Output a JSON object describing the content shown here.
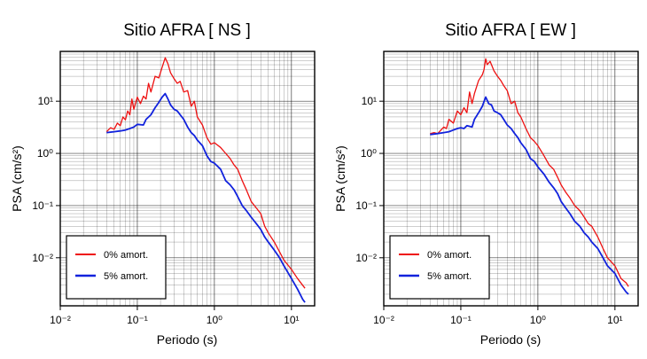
{
  "colors": {
    "undamped": "#ee1111",
    "damped": "#1122dd",
    "grid": "#000000",
    "frame": "#000000"
  },
  "chart_data": [
    {
      "type": "line",
      "title": "Sitio AFRA [ NS ]",
      "xlabel": "Periodo (s)",
      "ylabel": "PSA (cm/s²)",
      "x_scale": "log",
      "y_scale": "log",
      "xlim": [
        0.01,
        20
      ],
      "ylim": [
        0.0012,
        90
      ],
      "x_ticks": [
        "10⁻²",
        "10⁻¹",
        "10⁰",
        "10¹"
      ],
      "y_ticks": [
        "10⁻²",
        "10⁻¹",
        "10⁰",
        "10¹"
      ],
      "grid": true,
      "legend_position": "lower-left",
      "series": [
        {
          "name": "0% amort.",
          "points": [
            [
              0.04,
              2.6
            ],
            [
              0.045,
              3.1
            ],
            [
              0.05,
              2.9
            ],
            [
              0.055,
              3.8
            ],
            [
              0.06,
              3.4
            ],
            [
              0.065,
              5.0
            ],
            [
              0.07,
              4.4
            ],
            [
              0.075,
              6.5
            ],
            [
              0.08,
              5.5
            ],
            [
              0.085,
              11
            ],
            [
              0.09,
              7
            ],
            [
              0.1,
              12
            ],
            [
              0.11,
              9
            ],
            [
              0.12,
              12.5
            ],
            [
              0.13,
              11
            ],
            [
              0.14,
              22
            ],
            [
              0.15,
              15
            ],
            [
              0.17,
              30
            ],
            [
              0.19,
              28
            ],
            [
              0.21,
              45
            ],
            [
              0.23,
              68
            ],
            [
              0.25,
              52
            ],
            [
              0.27,
              35
            ],
            [
              0.3,
              27
            ],
            [
              0.33,
              22
            ],
            [
              0.36,
              24
            ],
            [
              0.4,
              15
            ],
            [
              0.45,
              16
            ],
            [
              0.5,
              8
            ],
            [
              0.55,
              10
            ],
            [
              0.6,
              5
            ],
            [
              0.7,
              3.5
            ],
            [
              0.8,
              2
            ],
            [
              0.9,
              1.5
            ],
            [
              1.0,
              1.6
            ],
            [
              1.2,
              1.3
            ],
            [
              1.4,
              1.0
            ],
            [
              1.6,
              0.8
            ],
            [
              1.8,
              0.6
            ],
            [
              2.0,
              0.5
            ],
            [
              2.3,
              0.3
            ],
            [
              2.6,
              0.2
            ],
            [
              3.0,
              0.12
            ],
            [
              3.5,
              0.09
            ],
            [
              4.0,
              0.07
            ],
            [
              4.5,
              0.04
            ],
            [
              5.0,
              0.03
            ],
            [
              6.0,
              0.02
            ],
            [
              7.0,
              0.013
            ],
            [
              8.0,
              0.009
            ],
            [
              10.0,
              0.006
            ],
            [
              12.0,
              0.004
            ],
            [
              15.0,
              0.0026
            ]
          ]
        },
        {
          "name": "5% amort.",
          "points": [
            [
              0.04,
              2.5
            ],
            [
              0.05,
              2.6
            ],
            [
              0.06,
              2.7
            ],
            [
              0.07,
              2.8
            ],
            [
              0.08,
              3.0
            ],
            [
              0.09,
              3.2
            ],
            [
              0.1,
              3.6
            ],
            [
              0.12,
              3.5
            ],
            [
              0.13,
              4.5
            ],
            [
              0.15,
              5.5
            ],
            [
              0.17,
              7.5
            ],
            [
              0.19,
              9.5
            ],
            [
              0.21,
              12
            ],
            [
              0.23,
              14
            ],
            [
              0.25,
              11
            ],
            [
              0.27,
              8.5
            ],
            [
              0.3,
              7
            ],
            [
              0.33,
              6.5
            ],
            [
              0.36,
              5.5
            ],
            [
              0.4,
              4.5
            ],
            [
              0.45,
              3.2
            ],
            [
              0.5,
              2.5
            ],
            [
              0.55,
              2.2
            ],
            [
              0.6,
              1.8
            ],
            [
              0.7,
              1.4
            ],
            [
              0.8,
              0.9
            ],
            [
              0.9,
              0.7
            ],
            [
              1.0,
              0.65
            ],
            [
              1.2,
              0.5
            ],
            [
              1.4,
              0.3
            ],
            [
              1.6,
              0.25
            ],
            [
              1.8,
              0.2
            ],
            [
              2.0,
              0.15
            ],
            [
              2.3,
              0.1
            ],
            [
              2.6,
              0.08
            ],
            [
              3.0,
              0.06
            ],
            [
              3.5,
              0.045
            ],
            [
              4.0,
              0.035
            ],
            [
              4.5,
              0.025
            ],
            [
              5.0,
              0.02
            ],
            [
              6.0,
              0.014
            ],
            [
              7.0,
              0.01
            ],
            [
              8.0,
              0.007
            ],
            [
              10.0,
              0.004
            ],
            [
              12.0,
              0.0025
            ],
            [
              14.0,
              0.0016
            ],
            [
              15.0,
              0.0014
            ]
          ]
        }
      ]
    },
    {
      "type": "line",
      "title": "Sitio AFRA [ EW ]",
      "xlabel": "Periodo (s)",
      "ylabel": "PSA (cm/s²)",
      "x_scale": "log",
      "y_scale": "log",
      "xlim": [
        0.01,
        20
      ],
      "ylim": [
        0.0012,
        90
      ],
      "x_ticks": [
        "10⁻²",
        "10⁻¹",
        "10⁰",
        "10¹"
      ],
      "y_ticks": [
        "10⁻²",
        "10⁻¹",
        "10⁰",
        "10¹"
      ],
      "grid": true,
      "legend_position": "lower-left",
      "series": [
        {
          "name": "0% amort.",
          "points": [
            [
              0.04,
              2.4
            ],
            [
              0.045,
              2.5
            ],
            [
              0.05,
              2.4
            ],
            [
              0.06,
              3.2
            ],
            [
              0.065,
              3.0
            ],
            [
              0.07,
              4.5
            ],
            [
              0.08,
              3.8
            ],
            [
              0.09,
              6.5
            ],
            [
              0.1,
              5.5
            ],
            [
              0.11,
              7.5
            ],
            [
              0.12,
              6
            ],
            [
              0.13,
              15
            ],
            [
              0.14,
              9
            ],
            [
              0.15,
              14
            ],
            [
              0.17,
              25
            ],
            [
              0.19,
              32
            ],
            [
              0.2,
              40
            ],
            [
              0.21,
              65
            ],
            [
              0.22,
              50
            ],
            [
              0.24,
              58
            ],
            [
              0.27,
              38
            ],
            [
              0.3,
              30
            ],
            [
              0.33,
              25
            ],
            [
              0.36,
              20
            ],
            [
              0.4,
              16
            ],
            [
              0.45,
              9
            ],
            [
              0.5,
              10
            ],
            [
              0.55,
              6
            ],
            [
              0.6,
              5
            ],
            [
              0.7,
              3
            ],
            [
              0.8,
              2
            ],
            [
              0.9,
              1.7
            ],
            [
              1.0,
              1.4
            ],
            [
              1.2,
              0.9
            ],
            [
              1.4,
              0.6
            ],
            [
              1.6,
              0.5
            ],
            [
              1.8,
              0.35
            ],
            [
              2.0,
              0.25
            ],
            [
              2.3,
              0.18
            ],
            [
              2.6,
              0.14
            ],
            [
              3.0,
              0.1
            ],
            [
              3.5,
              0.08
            ],
            [
              4.0,
              0.06
            ],
            [
              4.5,
              0.045
            ],
            [
              5.0,
              0.04
            ],
            [
              6.0,
              0.025
            ],
            [
              7.0,
              0.015
            ],
            [
              8.0,
              0.01
            ],
            [
              10.0,
              0.007
            ],
            [
              12.0,
              0.004
            ],
            [
              14.0,
              0.0033
            ],
            [
              15.0,
              0.0028
            ]
          ]
        },
        {
          "name": "5% amort.",
          "points": [
            [
              0.04,
              2.3
            ],
            [
              0.05,
              2.4
            ],
            [
              0.06,
              2.5
            ],
            [
              0.07,
              2.6
            ],
            [
              0.08,
              2.8
            ],
            [
              0.09,
              3.0
            ],
            [
              0.1,
              3.1
            ],
            [
              0.11,
              3.0
            ],
            [
              0.12,
              3.4
            ],
            [
              0.14,
              3.2
            ],
            [
              0.15,
              4.5
            ],
            [
              0.17,
              6
            ],
            [
              0.19,
              8
            ],
            [
              0.21,
              12
            ],
            [
              0.23,
              9
            ],
            [
              0.25,
              8.5
            ],
            [
              0.27,
              6.5
            ],
            [
              0.3,
              6
            ],
            [
              0.33,
              5.5
            ],
            [
              0.36,
              4.5
            ],
            [
              0.4,
              3.5
            ],
            [
              0.45,
              3.0
            ],
            [
              0.5,
              2.4
            ],
            [
              0.55,
              2.0
            ],
            [
              0.6,
              1.6
            ],
            [
              0.7,
              1.2
            ],
            [
              0.8,
              0.8
            ],
            [
              0.9,
              0.7
            ],
            [
              1.0,
              0.55
            ],
            [
              1.2,
              0.4
            ],
            [
              1.4,
              0.28
            ],
            [
              1.6,
              0.22
            ],
            [
              1.8,
              0.17
            ],
            [
              2.0,
              0.12
            ],
            [
              2.3,
              0.09
            ],
            [
              2.6,
              0.07
            ],
            [
              3.0,
              0.05
            ],
            [
              3.5,
              0.04
            ],
            [
              4.0,
              0.03
            ],
            [
              4.5,
              0.025
            ],
            [
              5.0,
              0.02
            ],
            [
              6.0,
              0.015
            ],
            [
              7.0,
              0.01
            ],
            [
              8.0,
              0.007
            ],
            [
              10.0,
              0.005
            ],
            [
              12.0,
              0.003
            ],
            [
              14.0,
              0.0022
            ],
            [
              15.0,
              0.002
            ]
          ]
        }
      ]
    }
  ]
}
